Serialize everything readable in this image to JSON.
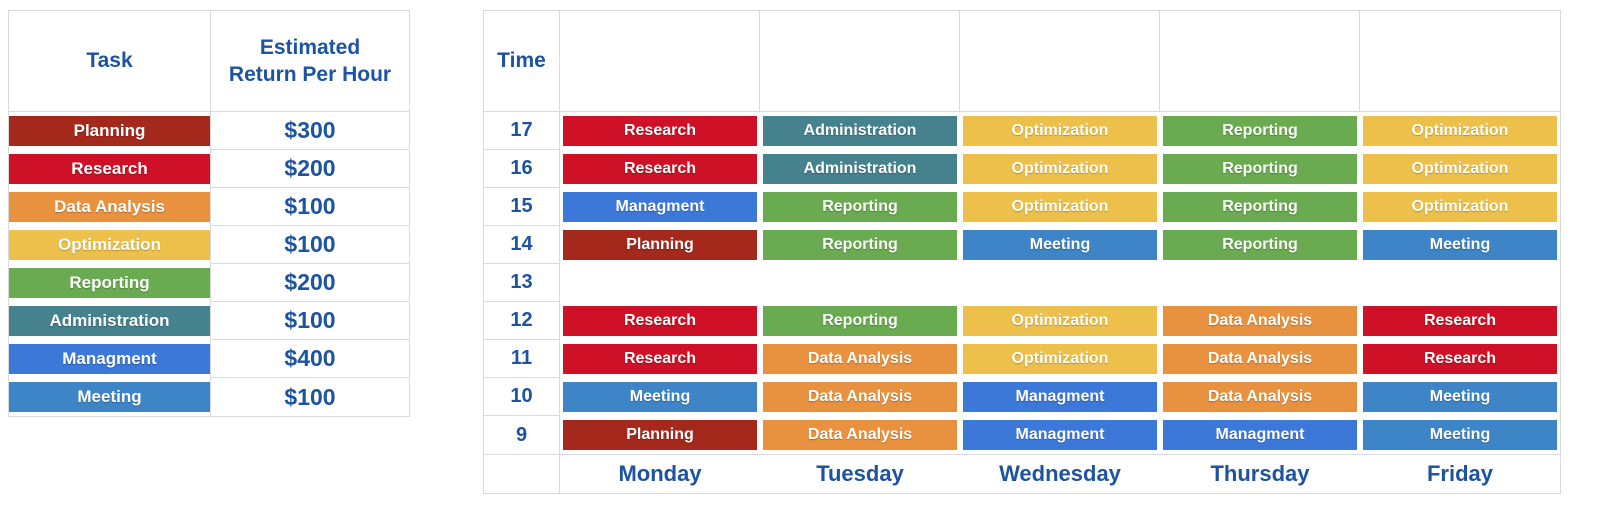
{
  "colors": {
    "blue_text": "#1C53A3",
    "grid_line": "#DADADA",
    "task_colors": {
      "Planning": "#A5281C",
      "Research": "#CE1126",
      "Data Analysis": "#E8913E",
      "Optimization": "#ECC04A",
      "Reporting": "#6AAA50",
      "Administration": "#46818E",
      "Managment": "#3C78D8",
      "Meeting": "#3D85C6"
    }
  },
  "legend_table": {
    "task_header": "Task",
    "value_header_line1": "Estimated",
    "value_header_line2": "Return Per Hour",
    "rows": [
      {
        "task": "Planning",
        "value": "$300"
      },
      {
        "task": "Research",
        "value": "$200"
      },
      {
        "task": "Data Analysis",
        "value": "$100"
      },
      {
        "task": "Optimization",
        "value": "$100"
      },
      {
        "task": "Reporting",
        "value": "$200"
      },
      {
        "task": "Administration",
        "value": "$100"
      },
      {
        "task": "Managment",
        "value": "$400"
      },
      {
        "task": "Meeting",
        "value": "$100"
      }
    ]
  },
  "schedule_table": {
    "time_header": "Time",
    "day_labels": [
      "Monday",
      "Tuesday",
      "Wednesday",
      "Thursday",
      "Friday"
    ],
    "rows": [
      {
        "time": "17",
        "cells": [
          "Research",
          "Administration",
          "Optimization",
          "Reporting",
          "Optimization"
        ]
      },
      {
        "time": "16",
        "cells": [
          "Research",
          "Administration",
          "Optimization",
          "Reporting",
          "Optimization"
        ]
      },
      {
        "time": "15",
        "cells": [
          "Managment",
          "Reporting",
          "Optimization",
          "Reporting",
          "Optimization"
        ]
      },
      {
        "time": "14",
        "cells": [
          "Planning",
          "Reporting",
          "Meeting",
          "Reporting",
          "Meeting"
        ]
      },
      {
        "time": "13",
        "cells": [
          "",
          "",
          "",
          "",
          ""
        ]
      },
      {
        "time": "12",
        "cells": [
          "Research",
          "Reporting",
          "Optimization",
          "Data Analysis",
          "Research"
        ]
      },
      {
        "time": "11",
        "cells": [
          "Research",
          "Data Analysis",
          "Optimization",
          "Data Analysis",
          "Research"
        ]
      },
      {
        "time": "10",
        "cells": [
          "Meeting",
          "Data Analysis",
          "Managment",
          "Data Analysis",
          "Meeting"
        ]
      },
      {
        "time": "9",
        "cells": [
          "Planning",
          "Data Analysis",
          "Managment",
          "Managment",
          "Meeting"
        ]
      }
    ]
  }
}
